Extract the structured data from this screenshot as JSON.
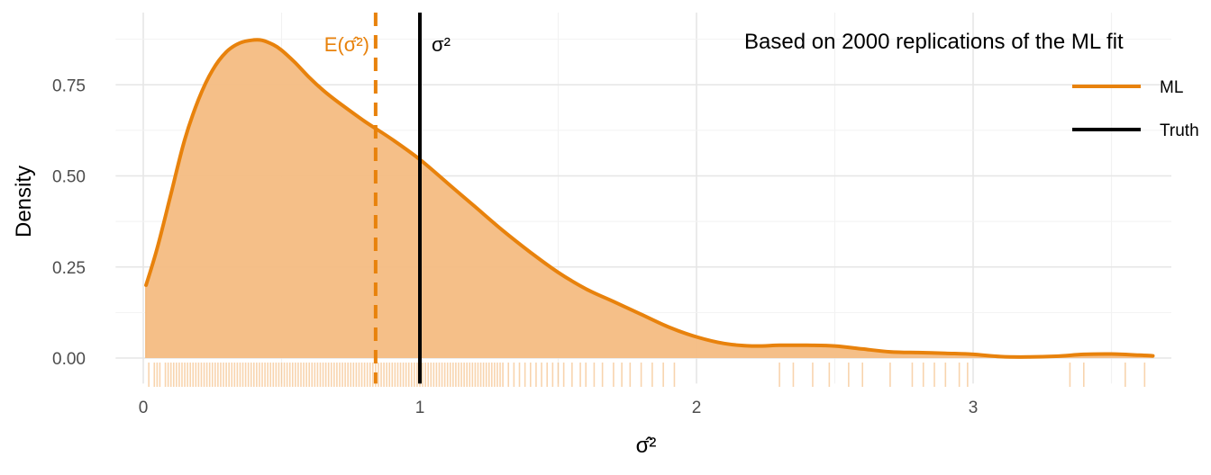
{
  "chart_data": {
    "type": "area",
    "subtitle": "Based on 2000 replications of the ML fit",
    "xlabel": "σ̂²",
    "ylabel": "Density",
    "xlim": [
      -0.1,
      3.7
    ],
    "ylim": [
      -0.07,
      0.9
    ],
    "x_ticks": [
      0,
      1,
      2,
      3
    ],
    "x_tick_labels": [
      "0",
      "1",
      "2",
      "3"
    ],
    "y_ticks": [
      0,
      0.25,
      0.5,
      0.75
    ],
    "y_tick_labels": [
      "0.00",
      "0.25",
      "0.50",
      "0.75"
    ],
    "grid": true,
    "legend_position": "top-right",
    "colors": {
      "ml": "#E8820C",
      "truth": "#000000",
      "fill": "#F4BC82",
      "rug": "#F0A04B"
    },
    "series": [
      {
        "name": "ML",
        "x": [
          0.01,
          0.05,
          0.1,
          0.15,
          0.2,
          0.25,
          0.3,
          0.35,
          0.4,
          0.43,
          0.47,
          0.5,
          0.55,
          0.6,
          0.65,
          0.7,
          0.8,
          0.9,
          1.0,
          1.1,
          1.2,
          1.3,
          1.4,
          1.5,
          1.6,
          1.7,
          1.8,
          1.9,
          2.0,
          2.1,
          2.2,
          2.3,
          2.4,
          2.5,
          2.6,
          2.7,
          2.8,
          2.9,
          3.0,
          3.1,
          3.2,
          3.3,
          3.4,
          3.5,
          3.6,
          3.65
        ],
        "y": [
          0.2,
          0.3,
          0.45,
          0.6,
          0.71,
          0.79,
          0.84,
          0.865,
          0.873,
          0.872,
          0.86,
          0.845,
          0.81,
          0.77,
          0.735,
          0.705,
          0.65,
          0.6,
          0.545,
          0.48,
          0.415,
          0.35,
          0.29,
          0.235,
          0.19,
          0.155,
          0.12,
          0.085,
          0.058,
          0.04,
          0.033,
          0.035,
          0.035,
          0.033,
          0.025,
          0.017,
          0.015,
          0.013,
          0.01,
          0.004,
          0.003,
          0.005,
          0.01,
          0.011,
          0.008,
          0.006
        ]
      },
      {
        "name": "Truth",
        "x": [
          1.0
        ]
      }
    ],
    "reference_lines": [
      {
        "label": "E(σ̂²)",
        "x": 0.84,
        "style": "dashed"
      },
      {
        "label": "σ²",
        "x": 1.0,
        "style": "solid"
      }
    ],
    "rug": [
      0.02,
      0.04,
      0.05,
      0.06,
      0.08,
      0.09,
      0.1,
      0.11,
      0.12,
      0.13,
      0.14,
      0.15,
      0.16,
      0.17,
      0.18,
      0.19,
      0.2,
      0.21,
      0.22,
      0.23,
      0.24,
      0.25,
      0.26,
      0.27,
      0.28,
      0.29,
      0.3,
      0.31,
      0.32,
      0.33,
      0.34,
      0.35,
      0.36,
      0.37,
      0.38,
      0.39,
      0.4,
      0.41,
      0.42,
      0.43,
      0.44,
      0.45,
      0.46,
      0.47,
      0.48,
      0.49,
      0.5,
      0.51,
      0.52,
      0.53,
      0.54,
      0.55,
      0.56,
      0.57,
      0.58,
      0.59,
      0.6,
      0.61,
      0.62,
      0.63,
      0.64,
      0.65,
      0.66,
      0.67,
      0.68,
      0.69,
      0.7,
      0.71,
      0.72,
      0.73,
      0.74,
      0.75,
      0.76,
      0.77,
      0.78,
      0.79,
      0.8,
      0.81,
      0.82,
      0.83,
      0.84,
      0.85,
      0.86,
      0.87,
      0.88,
      0.89,
      0.9,
      0.91,
      0.92,
      0.93,
      0.94,
      0.95,
      0.96,
      0.97,
      0.98,
      0.99,
      1.0,
      1.01,
      1.02,
      1.03,
      1.04,
      1.05,
      1.06,
      1.07,
      1.08,
      1.09,
      1.1,
      1.11,
      1.12,
      1.13,
      1.14,
      1.15,
      1.16,
      1.17,
      1.18,
      1.19,
      1.2,
      1.21,
      1.22,
      1.23,
      1.24,
      1.25,
      1.26,
      1.27,
      1.28,
      1.29,
      1.3,
      1.32,
      1.34,
      1.36,
      1.38,
      1.4,
      1.42,
      1.44,
      1.46,
      1.48,
      1.5,
      1.52,
      1.55,
      1.58,
      1.6,
      1.63,
      1.66,
      1.7,
      1.73,
      1.76,
      1.8,
      1.84,
      1.88,
      1.92,
      2.3,
      2.35,
      2.42,
      2.48,
      2.55,
      2.6,
      2.7,
      2.78,
      2.82,
      2.86,
      2.9,
      2.95,
      2.98,
      3.35,
      3.4,
      3.55,
      3.62
    ]
  },
  "legend": {
    "items": [
      {
        "label": "ML",
        "color": "#E8820C"
      },
      {
        "label": "Truth",
        "color": "#000000"
      }
    ]
  },
  "annotations": {
    "expected_label": "E(σ̂²)",
    "truth_label": "σ²"
  }
}
